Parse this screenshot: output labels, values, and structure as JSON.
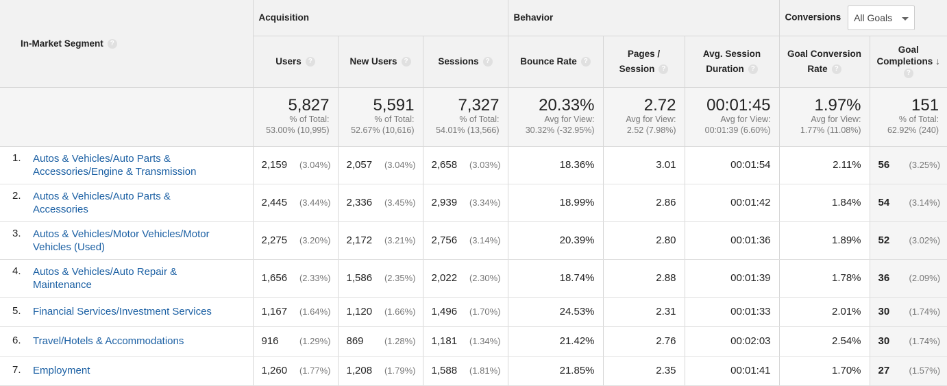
{
  "header": {
    "segment_label": "In-Market Segment",
    "groups": {
      "acquisition": "Acquisition",
      "behavior": "Behavior",
      "conversions": "Conversions"
    },
    "goal_select": "All Goals",
    "columns": {
      "users": "Users",
      "new_users": "New Users",
      "sessions": "Sessions",
      "bounce_rate": "Bounce Rate",
      "pages_session_1": "Pages /",
      "pages_session_2": "Session",
      "avg_duration_1": "Avg. Session",
      "avg_duration_2": "Duration",
      "goal_rate_1": "Goal Conversion",
      "goal_rate_2": "Rate",
      "goal_comp_1": "Goal",
      "goal_comp_2": "Completions"
    },
    "help_glyph": "?",
    "sort_glyph": "↓"
  },
  "totals": {
    "users": {
      "value": "5,827",
      "l1": "% of Total:",
      "l2": "53.00% (10,995)"
    },
    "new_users": {
      "value": "5,591",
      "l1": "% of Total:",
      "l2": "52.67% (10,616)"
    },
    "sessions": {
      "value": "7,327",
      "l1": "% of Total:",
      "l2": "54.01% (13,566)"
    },
    "bounce_rate": {
      "value": "20.33%",
      "l1": "Avg for View:",
      "l2": "30.32% (-32.95%)"
    },
    "pages_session": {
      "value": "2.72",
      "l1": "Avg for View:",
      "l2": "2.52 (7.98%)"
    },
    "avg_duration": {
      "value": "00:01:45",
      "l1": "Avg for View:",
      "l2": "00:01:39 (6.60%)"
    },
    "goal_rate": {
      "value": "1.97%",
      "l1": "Avg for View:",
      "l2": "1.77% (11.08%)"
    },
    "goal_comp": {
      "value": "151",
      "l1": "% of Total:",
      "l2": "62.92% (240)"
    }
  },
  "rows": [
    {
      "idx": "1.",
      "seg1": "Autos & Vehicles/Auto Parts &",
      "seg2": "Accessories/Engine & Transmission",
      "users": "2,159",
      "users_pct": "(3.04%)",
      "new_users": "2,057",
      "new_users_pct": "(3.04%)",
      "sessions": "2,658",
      "sessions_pct": "(3.03%)",
      "bounce": "18.36%",
      "pages": "3.01",
      "duration": "00:01:54",
      "goal_rate": "2.11%",
      "goal_comp": "56",
      "goal_comp_pct": "(3.25%)"
    },
    {
      "idx": "2.",
      "seg1": "Autos & Vehicles/Auto Parts &",
      "seg2": "Accessories",
      "users": "2,445",
      "users_pct": "(3.44%)",
      "new_users": "2,336",
      "new_users_pct": "(3.45%)",
      "sessions": "2,939",
      "sessions_pct": "(3.34%)",
      "bounce": "18.99%",
      "pages": "2.86",
      "duration": "00:01:42",
      "goal_rate": "1.84%",
      "goal_comp": "54",
      "goal_comp_pct": "(3.14%)"
    },
    {
      "idx": "3.",
      "seg1": "Autos & Vehicles/Motor Vehicles/Motor",
      "seg2": "Vehicles (Used)",
      "users": "2,275",
      "users_pct": "(3.20%)",
      "new_users": "2,172",
      "new_users_pct": "(3.21%)",
      "sessions": "2,756",
      "sessions_pct": "(3.14%)",
      "bounce": "20.39%",
      "pages": "2.80",
      "duration": "00:01:36",
      "goal_rate": "1.89%",
      "goal_comp": "52",
      "goal_comp_pct": "(3.02%)"
    },
    {
      "idx": "4.",
      "seg1": "Autos & Vehicles/Auto Repair &",
      "seg2": "Maintenance",
      "users": "1,656",
      "users_pct": "(2.33%)",
      "new_users": "1,586",
      "new_users_pct": "(2.35%)",
      "sessions": "2,022",
      "sessions_pct": "(2.30%)",
      "bounce": "18.74%",
      "pages": "2.88",
      "duration": "00:01:39",
      "goal_rate": "1.78%",
      "goal_comp": "36",
      "goal_comp_pct": "(2.09%)"
    },
    {
      "idx": "5.",
      "seg1": "Financial Services/Investment Services",
      "seg2": "",
      "users": "1,167",
      "users_pct": "(1.64%)",
      "new_users": "1,120",
      "new_users_pct": "(1.66%)",
      "sessions": "1,496",
      "sessions_pct": "(1.70%)",
      "bounce": "24.53%",
      "pages": "2.31",
      "duration": "00:01:33",
      "goal_rate": "2.01%",
      "goal_comp": "30",
      "goal_comp_pct": "(1.74%)"
    },
    {
      "idx": "6.",
      "seg1": "Travel/Hotels & Accommodations",
      "seg2": "",
      "users": "916",
      "users_pct": "(1.29%)",
      "new_users": "869",
      "new_users_pct": "(1.28%)",
      "sessions": "1,181",
      "sessions_pct": "(1.34%)",
      "bounce": "21.42%",
      "pages": "2.76",
      "duration": "00:02:03",
      "goal_rate": "2.54%",
      "goal_comp": "30",
      "goal_comp_pct": "(1.74%)"
    },
    {
      "idx": "7.",
      "seg1": "Employment",
      "seg2": "",
      "users": "1,260",
      "users_pct": "(1.77%)",
      "new_users": "1,208",
      "new_users_pct": "(1.79%)",
      "sessions": "1,588",
      "sessions_pct": "(1.81%)",
      "bounce": "21.85%",
      "pages": "2.35",
      "duration": "00:01:41",
      "goal_rate": "1.70%",
      "goal_comp": "27",
      "goal_comp_pct": "(1.57%)"
    }
  ]
}
